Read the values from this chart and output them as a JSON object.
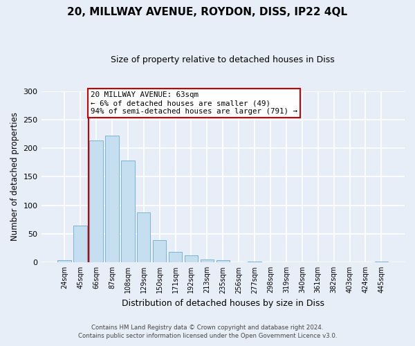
{
  "title1": "20, MILLWAY AVENUE, ROYDON, DISS, IP22 4QL",
  "title2": "Size of property relative to detached houses in Diss",
  "xlabel": "Distribution of detached houses by size in Diss",
  "ylabel": "Number of detached properties",
  "bar_labels": [
    "24sqm",
    "45sqm",
    "66sqm",
    "87sqm",
    "108sqm",
    "129sqm",
    "150sqm",
    "171sqm",
    "192sqm",
    "213sqm",
    "235sqm",
    "256sqm",
    "277sqm",
    "298sqm",
    "319sqm",
    "340sqm",
    "361sqm",
    "382sqm",
    "403sqm",
    "424sqm",
    "445sqm"
  ],
  "bar_values": [
    4,
    64,
    214,
    222,
    178,
    88,
    39,
    18,
    13,
    5,
    4,
    0,
    1,
    0,
    0,
    0,
    0,
    0,
    0,
    0,
    1
  ],
  "bar_color": "#c5dff0",
  "bar_edge_color": "#7ab3d4",
  "vline_color": "#cc0000",
  "vline_bar_idx": 2,
  "annotation_line0": "20 MILLWAY AVENUE: 63sqm",
  "annotation_line1": "← 6% of detached houses are smaller (49)",
  "annotation_line2": "94% of semi-detached houses are larger (791) →",
  "annotation_box_color": "#ffffff",
  "annotation_box_edge": "#cc0000",
  "ylim": [
    0,
    300
  ],
  "yticks": [
    0,
    50,
    100,
    150,
    200,
    250,
    300
  ],
  "footer1": "Contains HM Land Registry data © Crown copyright and database right 2024.",
  "footer2": "Contains public sector information licensed under the Open Government Licence v3.0.",
  "bg_color": "#e8eef8",
  "plot_bg_color": "#e8eef8"
}
